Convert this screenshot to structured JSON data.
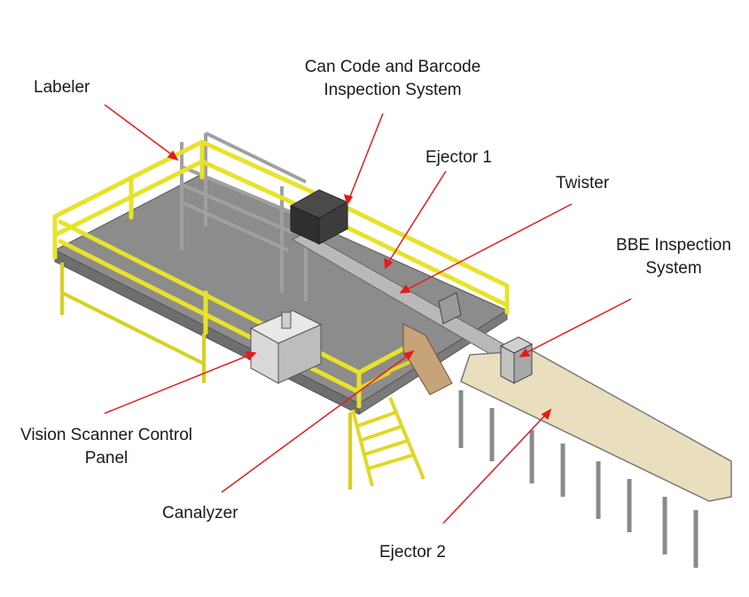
{
  "diagram": {
    "labels": {
      "labeler": "Labeler",
      "can_code_line1": "Can Code and Barcode",
      "can_code_line2": "Inspection System",
      "ejector1": "Ejector 1",
      "twister": "Twister",
      "bbe_line1": "BBE Inspection",
      "bbe_line2": "System",
      "vision_line1": "Vision Scanner Control",
      "vision_line2": "Panel",
      "canalyzer": "Canalyzer",
      "ejector2": "Ejector 2"
    },
    "colors": {
      "railing": "#e8e22a",
      "railing_dark": "#b5ad10",
      "deck": "#8c8c8c",
      "deck_edge": "#6e6e6e",
      "frame": "#9a9a9a",
      "conveyor": "#e9dfbf",
      "leader_line": "#e51b1b",
      "cabinet": "#3a3a3a"
    }
  }
}
